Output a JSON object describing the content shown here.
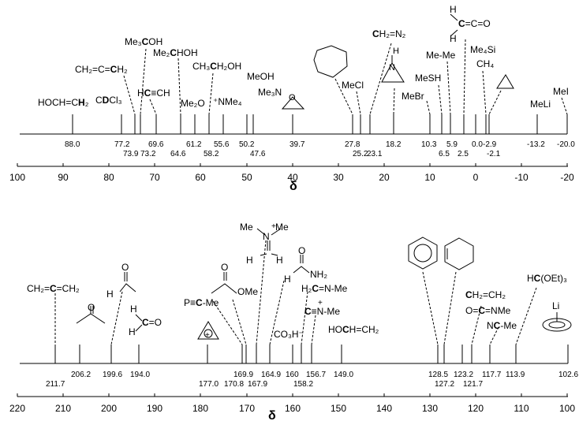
{
  "panels": [
    {
      "axis_label": "δ",
      "ticks": [
        "100",
        "90",
        "80",
        "70",
        "60",
        "50",
        "40",
        "30",
        "20",
        "10",
        "0",
        "-10",
        "-20"
      ],
      "compounds": [
        {
          "label": "HOCH=CH₂",
          "shift": "88.0"
        },
        {
          "label": "CDCl₃",
          "shift": "77.2"
        },
        {
          "label": "CH₂=C=CH₂",
          "shift": "73.9"
        },
        {
          "label": "Me₃COH",
          "shift": "69.6"
        },
        {
          "label": "HC≡CH",
          "shift": "73.2"
        },
        {
          "label": "Me₂CHOH",
          "shift": "64.6"
        },
        {
          "label": "Me₂O",
          "shift": "61.2"
        },
        {
          "label": "CH₃CH₂OH",
          "shift": "58.2"
        },
        {
          "label": "⁺NMe₄",
          "shift": "55.6"
        },
        {
          "label": "MeOH",
          "shift": "50.2"
        },
        {
          "label": "Me₃N",
          "shift": "47.6"
        },
        {
          "label": "oxirane",
          "shift": "39.7"
        },
        {
          "label": "cyclohexane",
          "shift": "27.8"
        },
        {
          "label": "MeCl",
          "shift": "25.2"
        },
        {
          "label": "CH₂=N₂",
          "shift": "23.1"
        },
        {
          "label": "aziridine",
          "shift": "18.2"
        },
        {
          "label": "MeBr",
          "shift": "10.3"
        },
        {
          "label": "MeSH",
          "shift": "6.5"
        },
        {
          "label": "Me-Me",
          "shift": "5.9"
        },
        {
          "label": "H₂C=C=O",
          "shift": "2.5"
        },
        {
          "label": "Me₄Si",
          "shift": "0.0"
        },
        {
          "label": "CH₄",
          "shift": "-2.1"
        },
        {
          "label": "cyclopropane",
          "shift": "-2.9"
        },
        {
          "label": "MeLi",
          "shift": "-13.2"
        },
        {
          "label": "MeI",
          "shift": "-20.0"
        }
      ]
    },
    {
      "axis_label": "δ",
      "ticks": [
        "220",
        "210",
        "200",
        "190",
        "180",
        "170",
        "160",
        "150",
        "140",
        "130",
        "120",
        "110",
        "100"
      ],
      "compounds": [
        {
          "label": "CH₂=C=CH₂",
          "shift": "211.7"
        },
        {
          "label": "acetone",
          "shift": "206.2"
        },
        {
          "label": "acetaldehyde",
          "shift": "199.6"
        },
        {
          "label": "H₂C=C=O",
          "shift": "194.0"
        },
        {
          "label": "oxirene",
          "shift": "177.0"
        },
        {
          "label": "P≡C-Me",
          "shift": "170.8"
        },
        {
          "label": "methyl acetate",
          "shift": "169.9"
        },
        {
          "label": "iminium",
          "shift": "167.9"
        },
        {
          "label": "formamide",
          "shift": "164.9"
        },
        {
          "label": "CO₃H⁻",
          "shift": "160"
        },
        {
          "label": "H₂C=N-Me",
          "shift": "158.2"
        },
        {
          "label": "C≡N-Me",
          "shift": "156.7"
        },
        {
          "label": "HOCH=CH₂",
          "shift": "149.0"
        },
        {
          "label": "benzene",
          "shift": "128.5"
        },
        {
          "label": "cyclohexene",
          "shift": "127.2"
        },
        {
          "label": "CH₂=CH₂",
          "shift": "123.2"
        },
        {
          "label": "O=C=NMe",
          "shift": "121.7"
        },
        {
          "label": "NC-Me",
          "shift": "117.7"
        },
        {
          "label": "HC(OEt)₃",
          "shift": "113.9"
        },
        {
          "label": "CpLi",
          "shift": "102.6"
        }
      ]
    }
  ]
}
